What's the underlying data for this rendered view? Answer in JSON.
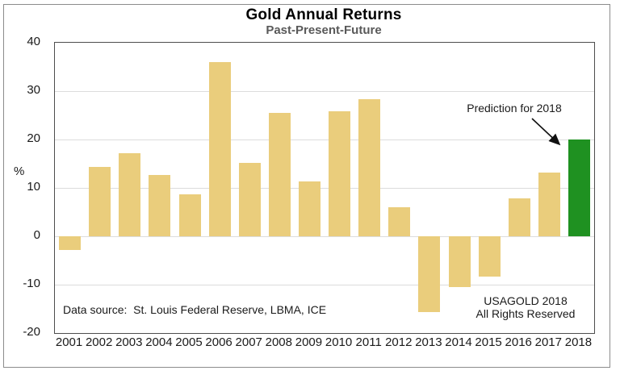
{
  "header": {
    "title": "Gold Annual Returns",
    "subtitle": "Past-Present-Future"
  },
  "y_axis": {
    "unit_label": "%",
    "tick_values": [
      40,
      30,
      20,
      10,
      0,
      -10,
      -20
    ]
  },
  "annotation": {
    "prediction_label": "Prediction for 2018"
  },
  "footnotes": {
    "data_source": "Data source:  St. Louis Federal Reserve, LBMA, ICE",
    "copyright_line1": "USAGOLD 2018",
    "copyright_line2": "All Rights Reserved"
  },
  "colors": {
    "bar_gold": "#EACD7C",
    "bar_prediction_green": "#1F9121",
    "gridline": "#DCDCDC",
    "subtitle_gray": "#595959"
  },
  "chart_data": {
    "type": "bar",
    "title": "Gold Annual Returns",
    "subtitle": "Past-Present-Future",
    "xlabel": "",
    "ylabel": "%",
    "ylim": [
      -20,
      40
    ],
    "grid": true,
    "legend": false,
    "categories": [
      "2001",
      "2002",
      "2003",
      "2004",
      "2005",
      "2006",
      "2007",
      "2008",
      "2009",
      "2010",
      "2011",
      "2012",
      "2013",
      "2014",
      "2015",
      "2016",
      "2017",
      "2018"
    ],
    "values": [
      -2.8,
      14.3,
      17.2,
      12.6,
      8.7,
      36,
      15.1,
      25.5,
      11.4,
      25.9,
      28.3,
      6,
      -15.6,
      -10.5,
      -8.4,
      7.8,
      13.2,
      20
    ],
    "highlight": {
      "category": "2018",
      "color": "#1F9121",
      "note": "Prediction for 2018"
    }
  }
}
